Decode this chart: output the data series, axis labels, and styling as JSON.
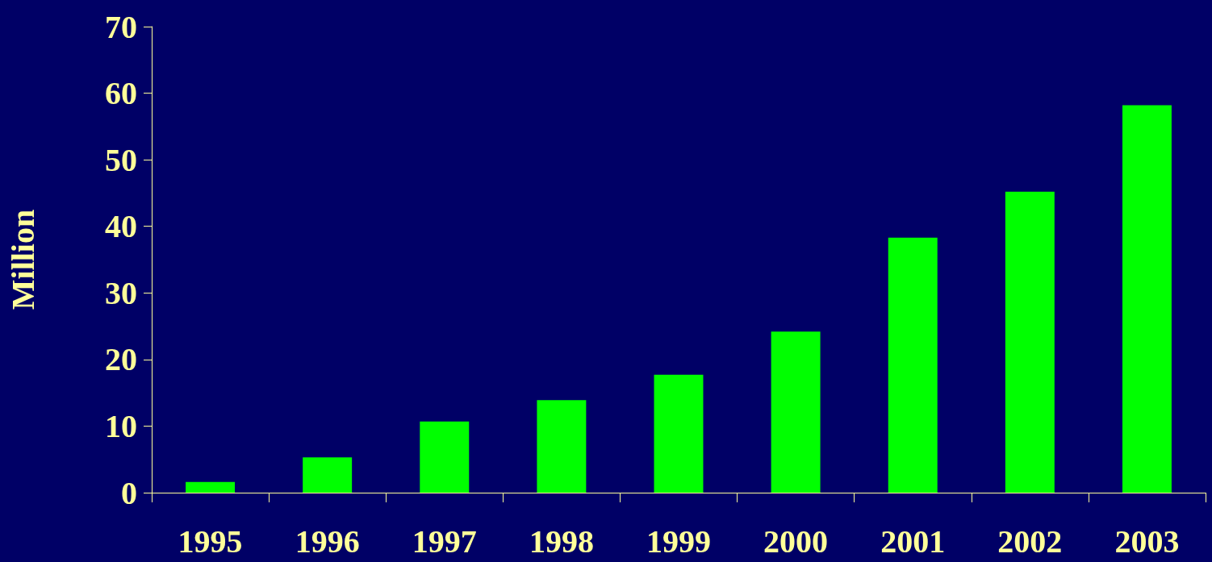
{
  "chart_data": {
    "type": "bar",
    "ylabel": "Million",
    "categories": [
      "1995",
      "1996",
      "1997",
      "1998",
      "1999",
      "2000",
      "2001",
      "2002",
      "2003"
    ],
    "values": [
      1.6,
      5.3,
      10.7,
      13.9,
      17.7,
      24.2,
      38.3,
      45.2,
      58.2
    ],
    "color": "#00ff00",
    "ylim": [
      0,
      70
    ],
    "yticks": [
      0,
      10,
      20,
      30,
      40,
      50,
      60,
      70
    ],
    "grid": false
  }
}
